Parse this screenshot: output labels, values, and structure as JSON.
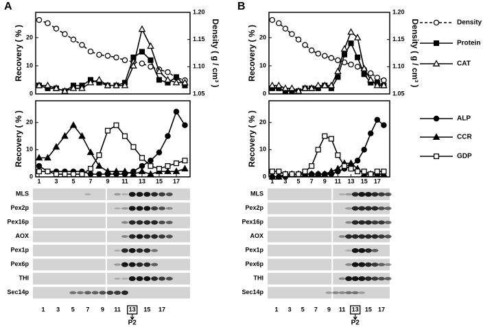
{
  "panels": [
    "A",
    "B"
  ],
  "chart_data": [
    {
      "type": "line",
      "x": [
        1,
        2,
        3,
        4,
        5,
        6,
        7,
        8,
        9,
        10,
        11,
        12,
        13,
        14,
        15,
        16,
        17,
        18
      ],
      "xlim": [
        0.6,
        18.6
      ],
      "ylabel": "Recovery ( % )",
      "ylim": [
        0,
        29
      ],
      "yticks": [
        0,
        10,
        20
      ],
      "y2label": "Density ( g / cm³ )",
      "y2lim": [
        1.05,
        1.2
      ],
      "y2ticks": [
        1.05,
        {
          "value": 1.1,
          "label": "1.10"
        },
        1.15,
        {
          "value": 1.2,
          "label": "1.20"
        }
      ],
      "series": [
        {
          "name": "Density",
          "color": "#000000",
          "marker": "circle",
          "fill": "open",
          "dash": true,
          "axis": "y2",
          "values": [
            1.186,
            1.18,
            1.17,
            1.16,
            1.15,
            1.14,
            1.128,
            1.122,
            1.12,
            1.117,
            1.112,
            1.109,
            1.106,
            1.1,
            1.095,
            1.09,
            1.08,
            1.075
          ]
        },
        {
          "name": "Protein",
          "color": "#000000",
          "marker": "square",
          "fill": "filled",
          "dash": false,
          "values": [
            3,
            2,
            2,
            1,
            3,
            3,
            5,
            4,
            3,
            3,
            4,
            13,
            15,
            12,
            5,
            4,
            6,
            3
          ]
        },
        {
          "name": "CAT",
          "color": "#000000",
          "marker": "triangle",
          "fill": "open",
          "dash": false,
          "values": [
            3,
            3,
            2,
            1,
            2,
            2,
            4,
            5,
            3,
            3,
            3,
            10,
            23,
            17,
            8,
            5,
            4,
            4
          ]
        }
      ]
    },
    {
      "type": "line",
      "x": [
        1,
        2,
        3,
        4,
        5,
        6,
        7,
        8,
        9,
        10,
        11,
        12,
        13,
        14,
        15,
        16,
        17,
        18
      ],
      "xlim": [
        0.6,
        18.6
      ],
      "xticks": [
        1,
        3,
        5,
        7,
        9,
        11,
        13,
        15,
        17
      ],
      "ylabel": "Recovery ( % )",
      "ylim": [
        0,
        28
      ],
      "yticks": [
        0,
        10,
        20
      ],
      "series": [
        {
          "name": "ALP",
          "color": "#000000",
          "marker": "circle",
          "fill": "filled",
          "dash": false,
          "values": [
            4,
            2,
            2,
            2,
            2,
            2,
            1,
            1,
            1,
            1,
            1,
            2,
            4,
            6,
            9,
            15,
            24,
            19
          ]
        },
        {
          "name": "CCR",
          "color": "#000000",
          "marker": "triangle",
          "fill": "filled",
          "dash": false,
          "values": [
            7,
            7,
            11,
            15,
            19,
            15,
            9,
            4,
            2,
            2,
            2,
            1,
            2,
            1,
            2,
            2,
            2,
            3
          ]
        },
        {
          "name": "GDP",
          "color": "#000000",
          "marker": "square",
          "fill": "open",
          "dash": false,
          "values": [
            2,
            2,
            1,
            1,
            1,
            1,
            3,
            8,
            17,
            19,
            15,
            11,
            7,
            4,
            3,
            4,
            5,
            6
          ]
        }
      ]
    },
    {
      "type": "line",
      "x": [
        1,
        2,
        3,
        4,
        5,
        6,
        7,
        8,
        9,
        10,
        11,
        12,
        13,
        14,
        15,
        16,
        17,
        18
      ],
      "xlim": [
        0.5,
        18.9
      ],
      "ylabel": "Recovery ( % )",
      "ylim": [
        0,
        29
      ],
      "yticks": [
        0,
        10,
        20
      ],
      "y2label": "Density ( g / cm³ )",
      "y2lim": [
        1.05,
        1.2
      ],
      "y2ticks": [
        1.05,
        {
          "value": 1.1,
          "label": "1.10"
        },
        1.15,
        {
          "value": 1.2,
          "label": "1.20"
        }
      ],
      "series": [
        {
          "color": "#000000",
          "marker": "circle",
          "fill": "open",
          "dash": true,
          "axis": "y2",
          "values": [
            1.186,
            1.18,
            1.17,
            1.16,
            1.15,
            1.14,
            1.13,
            1.124,
            1.12,
            1.116,
            1.112,
            1.108,
            1.104,
            1.1,
            1.095,
            1.088,
            1.08,
            1.075
          ]
        },
        {
          "color": "#000000",
          "marker": "square",
          "fill": "filled",
          "dash": false,
          "values": [
            2,
            2,
            1,
            1,
            1,
            2,
            2,
            2,
            3,
            2,
            6,
            14,
            18,
            13,
            7,
            4,
            4,
            3
          ]
        },
        {
          "color": "#000000",
          "marker": "triangle",
          "fill": "open",
          "dash": false,
          "values": [
            3,
            3,
            2,
            2,
            1,
            2,
            2,
            3,
            3,
            3,
            8,
            16,
            22,
            20,
            9,
            5,
            3,
            3
          ]
        }
      ]
    },
    {
      "type": "line",
      "x": [
        1,
        2,
        3,
        4,
        5,
        6,
        7,
        8,
        9,
        10,
        11,
        12,
        13,
        14,
        15,
        16,
        17,
        18
      ],
      "xlim": [
        0.5,
        18.9
      ],
      "xticks": [
        1,
        3,
        5,
        7,
        9,
        11,
        13,
        15,
        17
      ],
      "ylabel": "Recovery ( % )",
      "ylim": [
        0,
        28
      ],
      "yticks": [
        0,
        10,
        20
      ],
      "series": [
        {
          "color": "#000000",
          "marker": "circle",
          "fill": "filled",
          "dash": false,
          "values": [
            0,
            0,
            0,
            1,
            1,
            1,
            1,
            1,
            1,
            1,
            2,
            3,
            4,
            6,
            10,
            16,
            21,
            19
          ]
        },
        {
          "color": "#000000",
          "marker": "triangle",
          "fill": "filled",
          "dash": false,
          "values": [
            0,
            0,
            1,
            1,
            1,
            1,
            1,
            1,
            1,
            2,
            3,
            5,
            5,
            3,
            1,
            1,
            1,
            1
          ]
        },
        {
          "color": "#000000",
          "marker": "square",
          "fill": "open",
          "dash": false,
          "values": [
            2,
            2,
            1,
            1,
            1,
            2,
            4,
            10,
            15,
            14,
            8,
            4,
            3,
            2,
            2,
            1,
            2,
            2
          ]
        }
      ]
    }
  ],
  "blots": [
    {
      "rows": [
        "MLS",
        "Pex2p",
        "Pex16p",
        "AOX",
        "Pex1p",
        "Pex6p",
        "THI",
        "Sec14p"
      ],
      "lanes": [
        1,
        3,
        5,
        7,
        9,
        11,
        13,
        15,
        17
      ],
      "marked_lane": 13,
      "pool": "P2"
    },
    {
      "rows": [
        "MLS",
        "Pex2p",
        "Pex16p",
        "AOX",
        "Pex1p",
        "Pex6p",
        "THI",
        "Sec14p"
      ],
      "lanes": [
        1,
        3,
        5,
        7,
        9,
        11,
        13,
        15,
        17
      ],
      "marked_lane": 13,
      "pool": "P2"
    }
  ]
}
